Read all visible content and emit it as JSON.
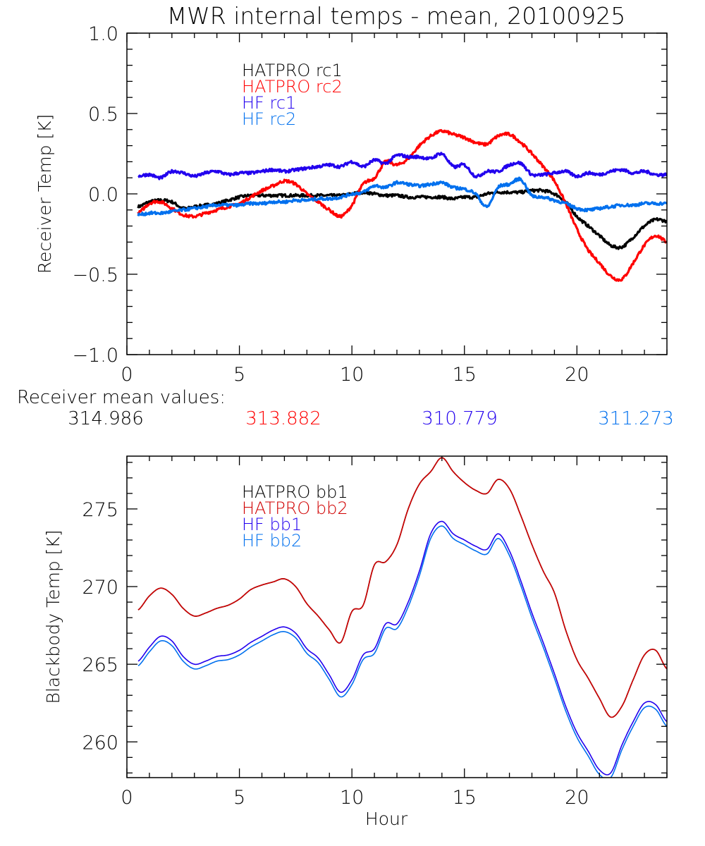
{
  "figure_title": "MWR internal temps - mean, 20100925",
  "mean_values": {
    "label": "Receiver mean values:",
    "values": [
      {
        "text": "314.986",
        "color": "#000000"
      },
      {
        "text": "313.882",
        "color": "#ff0000"
      },
      {
        "text": "310.779",
        "color": "#2200ee"
      },
      {
        "text": "311.273",
        "color": "#0070ee"
      }
    ]
  },
  "chart_data": [
    {
      "type": "line",
      "title": "MWR internal temps - mean, 20100925",
      "xlabel": "",
      "ylabel": "Receiver Temp [K]",
      "xlim": [
        0,
        24
      ],
      "ylim": [
        -1.0,
        1.0
      ],
      "xticks": [
        0,
        5,
        10,
        15,
        20
      ],
      "xtick_labels": [
        "0",
        "5",
        "10",
        "15",
        "20"
      ],
      "yticks": [
        -1.0,
        -0.5,
        0.0,
        0.5,
        1.0
      ],
      "ytick_labels": [
        "-1.0",
        "-0.5",
        "0.0",
        "0.5",
        "1.0"
      ],
      "x_minor_step": 1,
      "y_minor_step": 0.1,
      "grid": false,
      "legend_position": "top-left",
      "noisy": true,
      "x": [
        0.5,
        1,
        1.5,
        2,
        2.5,
        3,
        3.5,
        4,
        4.5,
        5,
        5.5,
        6,
        6.5,
        7,
        7.5,
        8,
        8.5,
        9,
        9.5,
        10,
        10.5,
        11,
        11.5,
        12,
        12.5,
        13,
        13.5,
        14,
        14.5,
        15,
        15.5,
        16,
        16.5,
        17,
        17.5,
        18,
        18.5,
        19,
        19.5,
        20,
        20.5,
        21,
        21.5,
        22,
        22.5,
        23,
        23.5,
        24
      ],
      "series": [
        {
          "name": "HATPRO rc1",
          "color": "#000000",
          "values": [
            -0.08,
            -0.05,
            -0.04,
            -0.05,
            -0.09,
            -0.08,
            -0.07,
            -0.06,
            -0.04,
            -0.02,
            -0.01,
            -0.01,
            -0.01,
            -0.01,
            -0.01,
            -0.01,
            -0.01,
            -0.01,
            -0.01,
            0.0,
            0.01,
            0.0,
            -0.01,
            -0.01,
            -0.02,
            -0.02,
            -0.02,
            -0.02,
            -0.03,
            -0.02,
            -0.02,
            0.0,
            0.01,
            0.01,
            0.01,
            0.02,
            0.02,
            0.0,
            -0.05,
            -0.14,
            -0.2,
            -0.26,
            -0.32,
            -0.33,
            -0.27,
            -0.2,
            -0.16,
            -0.17
          ]
        },
        {
          "name": "HATPRO rc2",
          "color": "#ff0000",
          "values": [
            -0.12,
            -0.06,
            -0.05,
            -0.09,
            -0.13,
            -0.14,
            -0.12,
            -0.1,
            -0.08,
            -0.06,
            -0.02,
            0.02,
            0.05,
            0.08,
            0.06,
            0.0,
            -0.05,
            -0.1,
            -0.14,
            -0.07,
            0.06,
            0.1,
            0.2,
            0.18,
            0.22,
            0.3,
            0.36,
            0.39,
            0.37,
            0.35,
            0.32,
            0.31,
            0.36,
            0.37,
            0.32,
            0.25,
            0.17,
            0.08,
            -0.06,
            -0.22,
            -0.35,
            -0.43,
            -0.51,
            -0.53,
            -0.43,
            -0.32,
            -0.26,
            -0.3
          ]
        },
        {
          "name": "HF rc1",
          "color": "#2200ee",
          "values": [
            0.11,
            0.12,
            0.1,
            0.14,
            0.13,
            0.11,
            0.13,
            0.14,
            0.12,
            0.13,
            0.13,
            0.14,
            0.15,
            0.14,
            0.15,
            0.16,
            0.17,
            0.18,
            0.17,
            0.2,
            0.17,
            0.21,
            0.19,
            0.24,
            0.23,
            0.23,
            0.22,
            0.25,
            0.17,
            0.18,
            0.11,
            0.14,
            0.14,
            0.18,
            0.19,
            0.12,
            0.12,
            0.13,
            0.14,
            0.11,
            0.13,
            0.12,
            0.14,
            0.15,
            0.13,
            0.14,
            0.12,
            0.12
          ]
        },
        {
          "name": "HF rc2",
          "color": "#0070ee",
          "values": [
            -0.13,
            -0.12,
            -0.12,
            -0.11,
            -0.1,
            -0.09,
            -0.08,
            -0.07,
            -0.07,
            -0.07,
            -0.06,
            -0.06,
            -0.05,
            -0.05,
            -0.04,
            -0.04,
            -0.03,
            -0.03,
            -0.02,
            0.0,
            0.01,
            0.05,
            0.04,
            0.07,
            0.06,
            0.05,
            0.06,
            0.07,
            0.04,
            0.03,
            0.0,
            -0.08,
            0.04,
            0.06,
            0.09,
            -0.01,
            -0.02,
            -0.04,
            -0.06,
            -0.09,
            -0.1,
            -0.09,
            -0.08,
            -0.07,
            -0.07,
            -0.06,
            -0.06,
            -0.06
          ]
        }
      ]
    },
    {
      "type": "line",
      "title": "",
      "xlabel": "Hour",
      "ylabel": "Blackbody Temp [K]",
      "xlim": [
        0,
        24
      ],
      "ylim": [
        257.7,
        278.4
      ],
      "xticks": [
        0,
        5,
        10,
        15,
        20
      ],
      "xtick_labels": [
        "0",
        "5",
        "10",
        "15",
        "20"
      ],
      "yticks": [
        260,
        265,
        270,
        275
      ],
      "ytick_labels": [
        "260",
        "265",
        "270",
        "275"
      ],
      "x_minor_step": 1,
      "y_minor_step": 1,
      "grid": false,
      "legend_position": "top-left",
      "noisy": false,
      "x": [
        0.5,
        1,
        1.5,
        2,
        2.5,
        3,
        3.5,
        4,
        4.5,
        5,
        5.5,
        6,
        6.5,
        7,
        7.5,
        8,
        8.5,
        9,
        9.5,
        10,
        10.5,
        11,
        11.5,
        12,
        12.5,
        13,
        13.5,
        14,
        14.5,
        15,
        15.5,
        16,
        16.5,
        17,
        17.5,
        18,
        18.5,
        19,
        19.5,
        20,
        20.5,
        21,
        21.5,
        22,
        22.5,
        23,
        23.5,
        24
      ],
      "series": [
        {
          "name": "HATPRO bb1",
          "color": "#000000",
          "values": [
            268.5,
            269.4,
            269.9,
            269.5,
            268.6,
            268.1,
            268.3,
            268.6,
            268.8,
            269.2,
            269.8,
            270.1,
            270.3,
            270.5,
            270.0,
            268.9,
            268.1,
            267.2,
            266.4,
            268.4,
            268.8,
            271.4,
            271.6,
            272.7,
            275.0,
            276.6,
            277.4,
            278.3,
            277.4,
            276.7,
            276.2,
            276.0,
            276.9,
            276.3,
            274.6,
            272.7,
            271.0,
            269.6,
            267.2,
            265.3,
            264.1,
            262.8,
            261.6,
            262.3,
            264.0,
            265.6,
            265.9,
            264.7
          ]
        },
        {
          "name": "HATPRO bb2",
          "color": "#d00000",
          "values": [
            268.5,
            269.4,
            269.9,
            269.5,
            268.6,
            268.1,
            268.3,
            268.6,
            268.8,
            269.2,
            269.8,
            270.1,
            270.3,
            270.5,
            270.0,
            268.9,
            268.1,
            267.2,
            266.4,
            268.4,
            268.8,
            271.4,
            271.6,
            272.7,
            275.0,
            276.6,
            277.4,
            278.3,
            277.4,
            276.7,
            276.2,
            276.0,
            276.9,
            276.3,
            274.6,
            272.7,
            271.0,
            269.6,
            267.2,
            265.3,
            264.1,
            262.8,
            261.6,
            262.3,
            264.0,
            265.6,
            265.9,
            264.7
          ]
        },
        {
          "name": "HF bb1",
          "color": "#2200ee",
          "values": [
            265.2,
            266.1,
            266.8,
            266.5,
            265.5,
            265.0,
            265.2,
            265.5,
            265.6,
            265.9,
            266.4,
            266.8,
            267.2,
            267.4,
            267.0,
            266.0,
            265.4,
            264.3,
            263.2,
            264.0,
            265.6,
            266.0,
            267.6,
            267.6,
            269.0,
            271.0,
            273.4,
            274.2,
            273.4,
            273.0,
            272.6,
            272.4,
            273.4,
            272.3,
            270.4,
            268.3,
            266.4,
            264.4,
            262.3,
            260.6,
            259.4,
            258.2,
            258.0,
            259.8,
            261.3,
            262.5,
            262.4,
            261.3
          ]
        },
        {
          "name": "HF bb2",
          "color": "#0070ee",
          "values": [
            264.9,
            265.8,
            266.5,
            266.2,
            265.2,
            264.7,
            264.9,
            265.2,
            265.3,
            265.6,
            266.1,
            266.5,
            266.9,
            267.1,
            266.7,
            265.7,
            265.1,
            264.0,
            262.9,
            263.7,
            265.3,
            265.7,
            267.3,
            267.3,
            268.7,
            270.7,
            273.1,
            273.9,
            273.1,
            272.7,
            272.3,
            272.1,
            273.1,
            272.0,
            270.1,
            268.0,
            266.1,
            264.1,
            262.0,
            260.3,
            259.1,
            257.9,
            257.7,
            259.5,
            261.0,
            262.2,
            262.1,
            261.0
          ]
        }
      ]
    }
  ]
}
